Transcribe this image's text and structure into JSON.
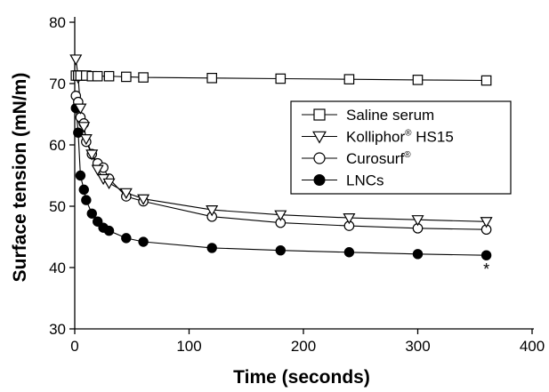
{
  "chart_data": {
    "type": "line",
    "xlabel": "Time (seconds)",
    "ylabel": "Surface tension (mN/m)",
    "xlim": [
      0,
      400
    ],
    "ylim": [
      30,
      80
    ],
    "xticks": [
      "0",
      "100",
      "200",
      "300",
      "400"
    ],
    "yticks": [
      "30",
      "40",
      "50",
      "60",
      "70",
      "80"
    ],
    "grid": false,
    "legend_position": "right",
    "series": [
      {
        "name": "Saline serum",
        "marker": "open-square",
        "x": [
          1,
          3,
          5,
          10,
          15,
          20,
          30,
          45,
          60,
          120,
          180,
          240,
          300,
          360
        ],
        "y": [
          71.3,
          71.3,
          71.3,
          71.3,
          71.2,
          71.2,
          71.2,
          71.1,
          71.0,
          70.9,
          70.8,
          70.7,
          70.6,
          70.5
        ]
      },
      {
        "name": "Kolliphor® HS15",
        "marker": "open-triangle-down",
        "x": [
          1,
          3,
          5,
          8,
          10,
          15,
          20,
          25,
          30,
          45,
          60,
          120,
          180,
          240,
          300,
          360
        ],
        "y": [
          74.0,
          71.0,
          66.0,
          63.0,
          61.0,
          58.5,
          56.0,
          54.5,
          53.8,
          52.2,
          51.2,
          49.4,
          48.6,
          48.1,
          47.8,
          47.5
        ]
      },
      {
        "name": "Curosurf®",
        "marker": "open-circle",
        "x": [
          1,
          3,
          5,
          8,
          10,
          15,
          20,
          25,
          30,
          45,
          60,
          120,
          180,
          240,
          300,
          360
        ],
        "y": [
          68.0,
          67.0,
          64.5,
          63.5,
          60.5,
          58.5,
          57.0,
          56.3,
          54.5,
          51.6,
          50.8,
          48.3,
          47.3,
          46.8,
          46.4,
          46.2
        ]
      },
      {
        "name": "LNCs",
        "marker": "filled-circle",
        "x": [
          1,
          3,
          5,
          8,
          10,
          15,
          20,
          25,
          30,
          45,
          60,
          120,
          180,
          240,
          300,
          360
        ],
        "y": [
          66.0,
          62.0,
          55.0,
          52.7,
          51.0,
          48.8,
          47.5,
          46.5,
          46.0,
          44.8,
          44.2,
          43.2,
          42.8,
          42.5,
          42.2,
          42.0
        ]
      }
    ],
    "annotations": [
      {
        "text": "*",
        "x": 360,
        "y": 39.7
      }
    ]
  }
}
